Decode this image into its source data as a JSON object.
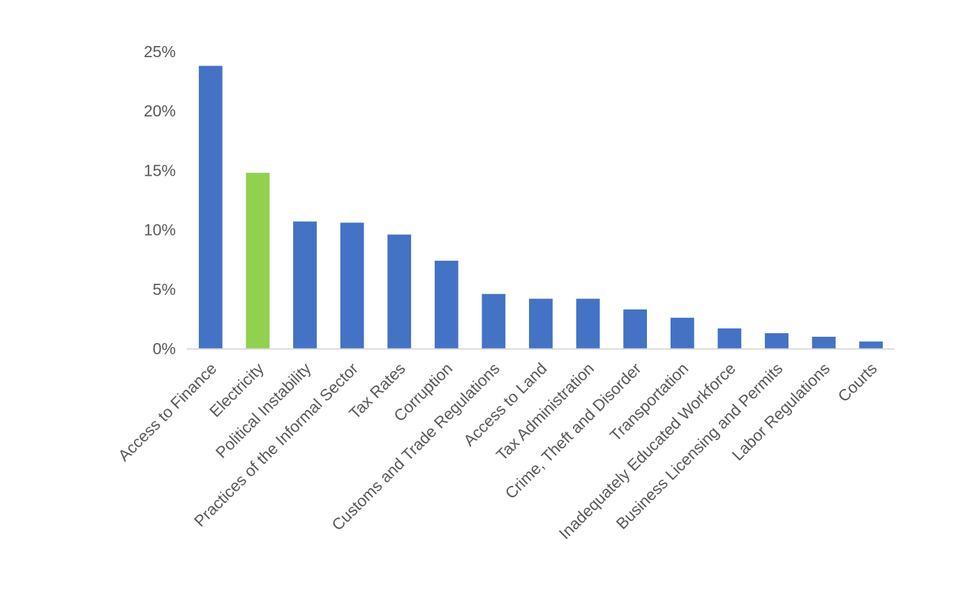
{
  "chart_data": {
    "type": "bar",
    "title": "",
    "xlabel": "",
    "ylabel": "",
    "ylim": [
      0,
      25
    ],
    "yticks": [
      0,
      5,
      10,
      15,
      20,
      25
    ],
    "ytick_labels": [
      "0%",
      "5%",
      "10%",
      "15%",
      "20%",
      "25%"
    ],
    "grid": false,
    "legend": "none",
    "categories": [
      "Access to Finance",
      "Electricity",
      "Political Instability",
      "Practices of the Informal Sector",
      "Tax Rates",
      "Corruption",
      "Customs and Trade Regulations",
      "Access to Land",
      "Tax Administration",
      "Crime, Theft and Disorder",
      "Transportation",
      "Inadequately Educated Workforce",
      "Business Licensing and Permits",
      "Labor Regulations",
      "Courts"
    ],
    "values": [
      23.8,
      14.8,
      10.7,
      10.6,
      9.6,
      7.4,
      4.6,
      4.2,
      4.2,
      3.3,
      2.6,
      1.7,
      1.3,
      1.0,
      0.6
    ],
    "colors": {
      "default": "#4472c4",
      "highlight": "#92d050",
      "axis": "#d9d9d9",
      "text": "#595959"
    },
    "highlight_index": 1
  }
}
